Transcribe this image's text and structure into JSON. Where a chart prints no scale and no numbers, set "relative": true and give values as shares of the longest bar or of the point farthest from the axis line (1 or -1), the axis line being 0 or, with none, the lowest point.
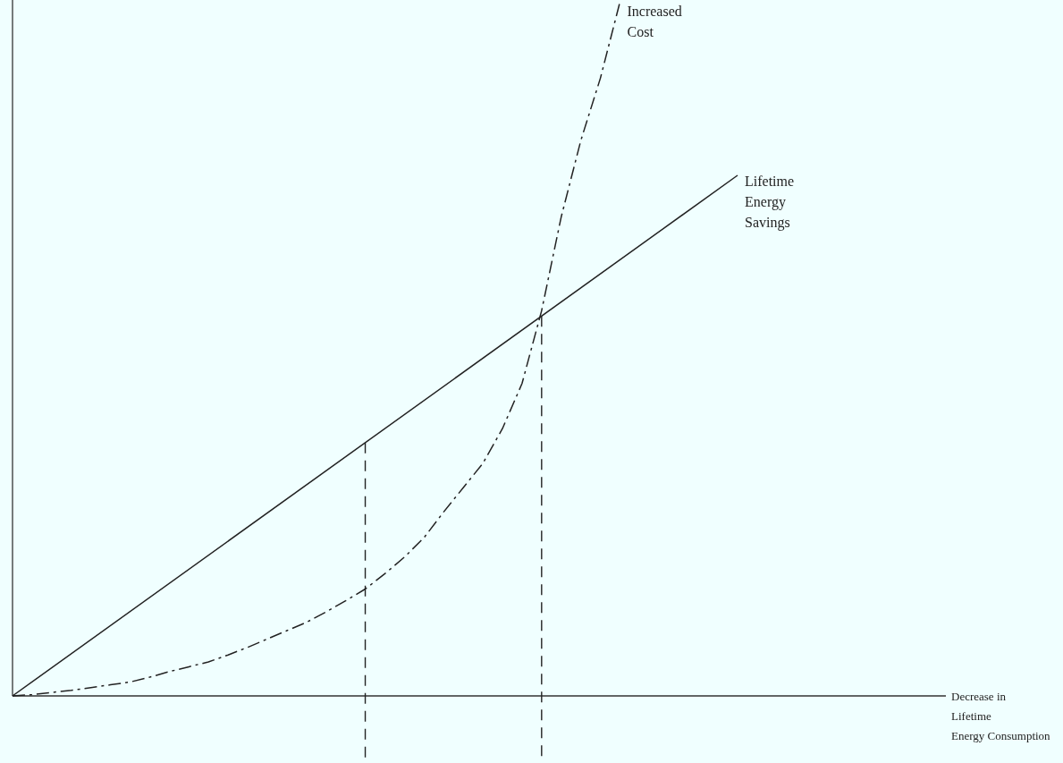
{
  "chart_data": {
    "type": "line",
    "relative": true,
    "annotations": [
      "Decrease in\nLifetime\nEnergy Consumption"
    ],
    "categories": [
      null,
      null,
      null,
      null,
      null,
      null,
      null,
      null,
      null,
      null,
      null,
      null,
      null,
      null,
      null,
      null,
      null,
      null,
      null,
      null,
      null,
      null,
      null,
      null,
      null,
      null,
      null,
      null,
      null,
      null,
      null,
      null,
      null,
      null,
      null,
      null,
      null,
      null
    ],
    "series": [
      {
        "name": "Increased\nCost",
        "color": "#222222",
        "line_style": "dashed",
        "values": [
          0,
          0.002,
          0.005,
          0.008,
          0.012,
          0.016,
          0.02,
          0.027,
          0.035,
          0.042,
          0.049,
          0.059,
          0.07,
          0.082,
          0.094,
          0.106,
          0.121,
          0.137,
          0.154,
          0.176,
          0.2,
          0.228,
          0.265,
          0.3,
          0.335,
          0.385,
          0.45,
          0.555,
          0.69,
          0.8,
          0.89,
          1,
          null,
          null,
          null,
          null,
          null,
          null
        ]
      },
      {
        "name": "Lifetime\nEnergy\nSavings",
        "color": "#222222",
        "line_style": "solid",
        "values": [
          0,
          null,
          null,
          null,
          null,
          null,
          null,
          null,
          null,
          null,
          null,
          null,
          null,
          null,
          null,
          null,
          null,
          null,
          null,
          null,
          null,
          null,
          null,
          null,
          null,
          null,
          null,
          null,
          null,
          null,
          null,
          null,
          null,
          null,
          null,
          null,
          null,
          0.75
        ]
      }
    ]
  }
}
